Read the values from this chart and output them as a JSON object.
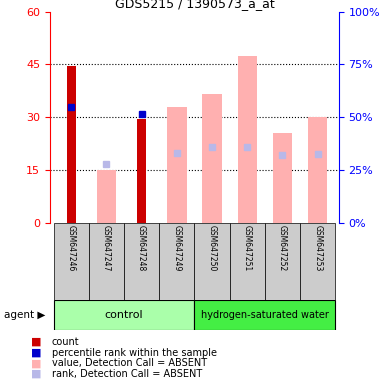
{
  "title": "GDS5215 / 1390573_a_at",
  "samples": [
    "GSM647246",
    "GSM647247",
    "GSM647248",
    "GSM647249",
    "GSM647250",
    "GSM647251",
    "GSM647252",
    "GSM647253"
  ],
  "count_values": [
    44.5,
    null,
    29.5,
    null,
    null,
    null,
    null,
    null
  ],
  "percentile_rank_values": [
    33.0,
    null,
    31.0,
    null,
    null,
    null,
    null,
    null
  ],
  "value_absent": [
    null,
    15.0,
    null,
    33.0,
    36.5,
    47.5,
    25.5,
    30.0
  ],
  "rank_absent": [
    null,
    28.0,
    null,
    33.0,
    36.0,
    36.0,
    32.0,
    32.5
  ],
  "ylim_left": [
    0,
    60
  ],
  "ylim_right": [
    0,
    100
  ],
  "yticks_left": [
    0,
    15,
    30,
    45,
    60
  ],
  "yticks_right": [
    0,
    25,
    50,
    75,
    100
  ],
  "color_count": "#cc0000",
  "color_rank": "#0000cc",
  "color_value_absent": "#ffb0b0",
  "color_rank_absent": "#b8b8e8",
  "control_color": "#aaffaa",
  "hw_color": "#44ee44",
  "sample_bg_color": "#cccccc"
}
